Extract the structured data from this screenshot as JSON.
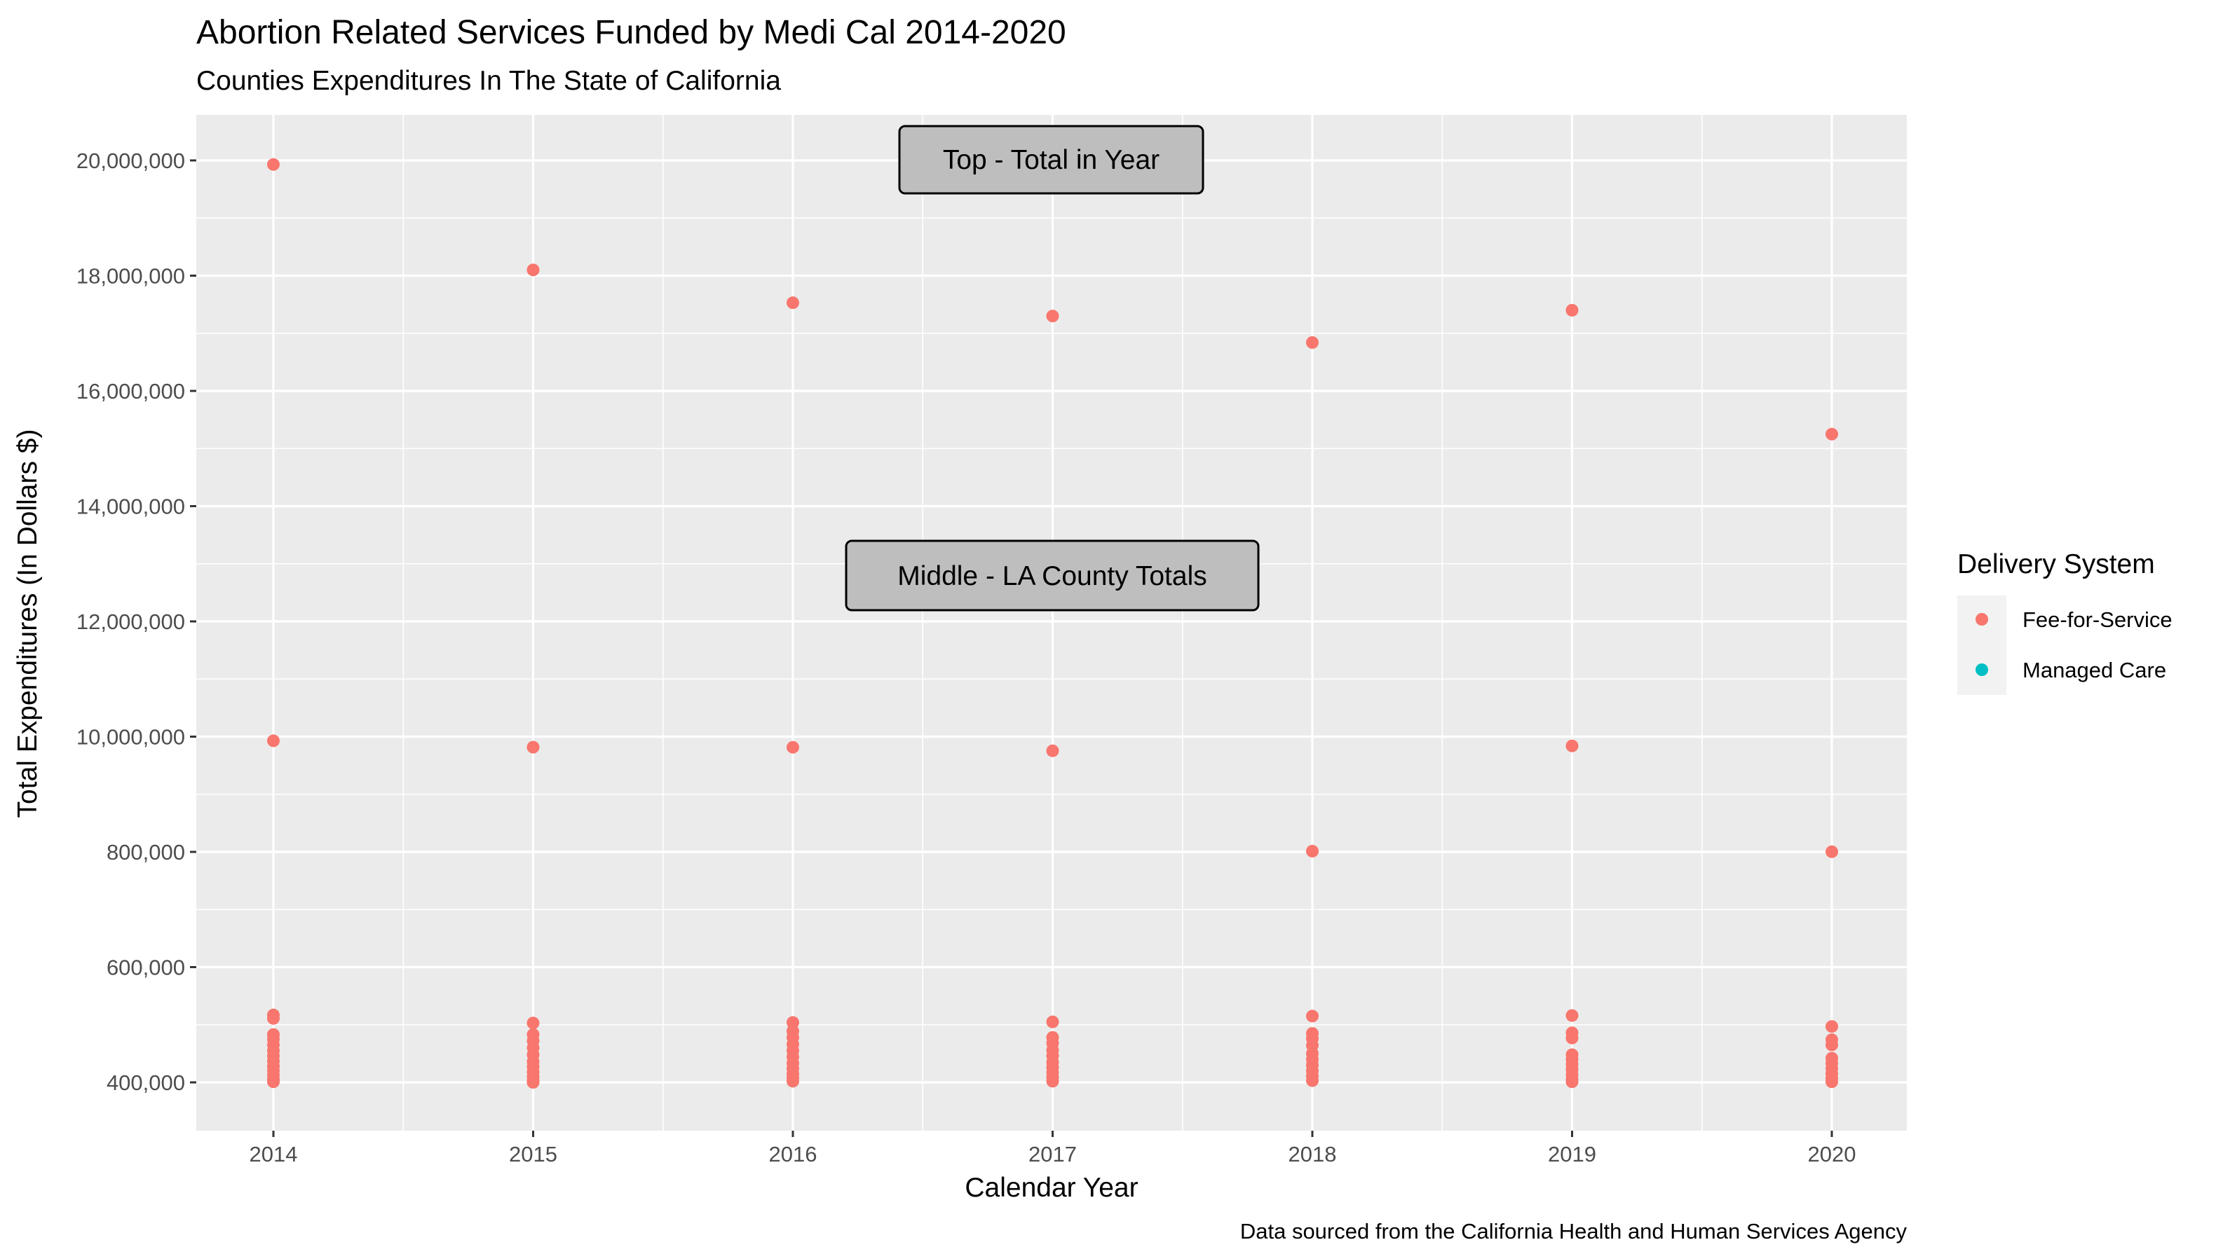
{
  "chart_data": {
    "type": "scatter",
    "title": "Abortion Related Services Funded by Medi Cal 2014-2020",
    "subtitle": "Counties Expenditures In The State of California",
    "xlabel": "Calendar Year",
    "ylabel": "Total Expenditures (In Dollars $)",
    "caption": "Data sourced from the California Health and Human Services Agency",
    "x_ticks": [
      "2014",
      "2015",
      "2016",
      "2017",
      "2018",
      "2019",
      "2020"
    ],
    "y_ticks": [
      "400,000",
      "600,000",
      "800,000",
      "10,000,000",
      "12,000,000",
      "14,000,000",
      "16,000,000",
      "18,000,000",
      "20,000,000"
    ],
    "grid": true,
    "legend": {
      "title": "Delivery System",
      "position": "right",
      "entries": [
        {
          "name": "Fee-for-Service",
          "color": "#F8766D"
        },
        {
          "name": "Managed Care",
          "color": "#00BFC4"
        }
      ]
    },
    "annotations": [
      "Top - Total in Year",
      "Middle - LA County Totals"
    ],
    "series": [
      {
        "name": "Fee-for-Service",
        "color": "#F8766D",
        "points": [
          {
            "x": 2014,
            "y": "19,930,000"
          },
          {
            "x": 2015,
            "y": "18,100,000"
          },
          {
            "x": 2016,
            "y": "17,530,000"
          },
          {
            "x": 2017,
            "y": "17,300,000"
          },
          {
            "x": 2018,
            "y": "16,840,000"
          },
          {
            "x": 2019,
            "y": "17,400,000"
          },
          {
            "x": 2020,
            "y": "15,250,000"
          },
          {
            "x": 2014,
            "y": "9,670,000"
          },
          {
            "x": 2015,
            "y": "9,160,000"
          },
          {
            "x": 2016,
            "y": "9,150,000"
          },
          {
            "x": 2017,
            "y": "8,870,000"
          },
          {
            "x": 2018,
            "y": "858,000"
          },
          {
            "x": 2019,
            "y": "9,260,000"
          },
          {
            "x": 2020,
            "y": "812,000"
          },
          {
            "x": 2014,
            "y": "517,000"
          },
          {
            "x": 2014,
            "y": "511,000"
          },
          {
            "x": 2014,
            "y": "483,000"
          },
          {
            "x": 2014,
            "y": "475,000"
          },
          {
            "x": 2014,
            "y": "465,000"
          },
          {
            "x": 2014,
            "y": "455,000"
          },
          {
            "x": 2014,
            "y": "446,000"
          },
          {
            "x": 2014,
            "y": "437,000"
          },
          {
            "x": 2014,
            "y": "428,000"
          },
          {
            "x": 2014,
            "y": "420,000"
          },
          {
            "x": 2014,
            "y": "412,000"
          },
          {
            "x": 2014,
            "y": "405,000"
          },
          {
            "x": 2014,
            "y": "401,000"
          },
          {
            "x": 2015,
            "y": "503,000"
          },
          {
            "x": 2015,
            "y": "483,000"
          },
          {
            "x": 2015,
            "y": "472,000"
          },
          {
            "x": 2015,
            "y": "460,000"
          },
          {
            "x": 2015,
            "y": "448,000"
          },
          {
            "x": 2015,
            "y": "436,000"
          },
          {
            "x": 2015,
            "y": "427,000"
          },
          {
            "x": 2015,
            "y": "418,000"
          },
          {
            "x": 2015,
            "y": "410,000"
          },
          {
            "x": 2015,
            "y": "403,000"
          },
          {
            "x": 2015,
            "y": "400,000"
          },
          {
            "x": 2016,
            "y": "504,000"
          },
          {
            "x": 2016,
            "y": "489,000"
          },
          {
            "x": 2016,
            "y": "478,000"
          },
          {
            "x": 2016,
            "y": "466,000"
          },
          {
            "x": 2016,
            "y": "455,000"
          },
          {
            "x": 2016,
            "y": "444,000"
          },
          {
            "x": 2016,
            "y": "433,000"
          },
          {
            "x": 2016,
            "y": "424,000"
          },
          {
            "x": 2016,
            "y": "415,000"
          },
          {
            "x": 2016,
            "y": "408,000"
          },
          {
            "x": 2016,
            "y": "402,000"
          },
          {
            "x": 2017,
            "y": "505,000"
          },
          {
            "x": 2017,
            "y": "478,000"
          },
          {
            "x": 2017,
            "y": "468,000"
          },
          {
            "x": 2017,
            "y": "456,000"
          },
          {
            "x": 2017,
            "y": "446,000"
          },
          {
            "x": 2017,
            "y": "435,000"
          },
          {
            "x": 2017,
            "y": "426,000"
          },
          {
            "x": 2017,
            "y": "417,000"
          },
          {
            "x": 2017,
            "y": "409,000"
          },
          {
            "x": 2017,
            "y": "402,000"
          },
          {
            "x": 2018,
            "y": "515,000"
          },
          {
            "x": 2018,
            "y": "485,000"
          },
          {
            "x": 2018,
            "y": "476,000"
          },
          {
            "x": 2018,
            "y": "464,000"
          },
          {
            "x": 2018,
            "y": "450,000"
          },
          {
            "x": 2018,
            "y": "440,000"
          },
          {
            "x": 2018,
            "y": "430,000"
          },
          {
            "x": 2018,
            "y": "420,000"
          },
          {
            "x": 2018,
            "y": "411,000"
          },
          {
            "x": 2018,
            "y": "403,000"
          },
          {
            "x": 2019,
            "y": "516,000"
          },
          {
            "x": 2019,
            "y": "486,000"
          },
          {
            "x": 2019,
            "y": "477,000"
          },
          {
            "x": 2019,
            "y": "448,000"
          },
          {
            "x": 2019,
            "y": "440,000"
          },
          {
            "x": 2019,
            "y": "431,000"
          },
          {
            "x": 2019,
            "y": "422,000"
          },
          {
            "x": 2019,
            "y": "413,000"
          },
          {
            "x": 2019,
            "y": "405,000"
          },
          {
            "x": 2019,
            "y": "401,000"
          },
          {
            "x": 2020,
            "y": "497,000"
          },
          {
            "x": 2020,
            "y": "474,000"
          },
          {
            "x": 2020,
            "y": "465,000"
          },
          {
            "x": 2020,
            "y": "442,000"
          },
          {
            "x": 2020,
            "y": "433,000"
          },
          {
            "x": 2020,
            "y": "424,000"
          },
          {
            "x": 2020,
            "y": "415,000"
          },
          {
            "x": 2020,
            "y": "407,000"
          },
          {
            "x": 2020,
            "y": "401,000"
          }
        ]
      },
      {
        "name": "Managed Care",
        "color": "#00BFC4",
        "points": []
      }
    ]
  }
}
